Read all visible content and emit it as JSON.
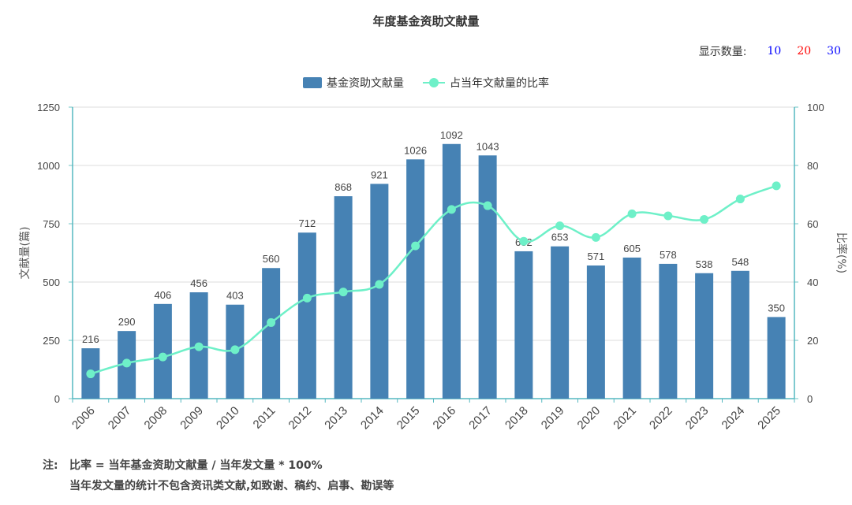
{
  "header": {
    "title": "年度基金资助文献量"
  },
  "count_selector": {
    "label": "显示数量:",
    "options": [
      {
        "label": "10",
        "color": "#0000ff"
      },
      {
        "label": "20",
        "color": "#ff0000"
      },
      {
        "label": "30",
        "color": "#0000ff"
      }
    ]
  },
  "notes": {
    "prefix": "注:",
    "line1": "比率 = 当年基金资助文献量 / 当年发文量 * 100%",
    "line2": "当年发文量的统计不包含资讯类文献,如致谢、稿约、启事、勘误等"
  },
  "chart_data": {
    "type": "bar",
    "title": "年度基金资助文献量",
    "categories": [
      "2006",
      "2007",
      "2008",
      "2009",
      "2010",
      "2011",
      "2012",
      "2013",
      "2014",
      "2015",
      "2016",
      "2017",
      "2018",
      "2019",
      "2020",
      "2021",
      "2022",
      "2023",
      "2024",
      "2025"
    ],
    "ylabel": "文献量(篇)",
    "ylabel_right": "比率(%)",
    "ylim": [
      0,
      1250
    ],
    "yticks": [
      "0",
      "250",
      "500",
      "750",
      "1000",
      "1250"
    ],
    "ylim_right": [
      0,
      100
    ],
    "yticks_right": [
      "0",
      "20",
      "40",
      "60",
      "80",
      "100"
    ],
    "grid": true,
    "legend_position": "top-center",
    "series": [
      {
        "name": "基金资助文献量",
        "type": "bar",
        "color": "#4682b4",
        "axis": "left",
        "values": [
          216,
          290,
          406,
          456,
          403,
          560,
          712,
          868,
          921,
          1026,
          1092,
          1043,
          632,
          653,
          571,
          605,
          578,
          538,
          548,
          350
        ]
      },
      {
        "name": "占当年文献量的比率",
        "type": "line",
        "color": "#6ef0c8",
        "axis": "right",
        "values": [
          8.5,
          12.2,
          14.3,
          17.8,
          16.8,
          26.1,
          34.5,
          36.6,
          39.2,
          52.4,
          64.9,
          66.2,
          54.0,
          59.3,
          55.3,
          63.4,
          62.7,
          61.5,
          68.5,
          73.0
        ]
      }
    ]
  }
}
